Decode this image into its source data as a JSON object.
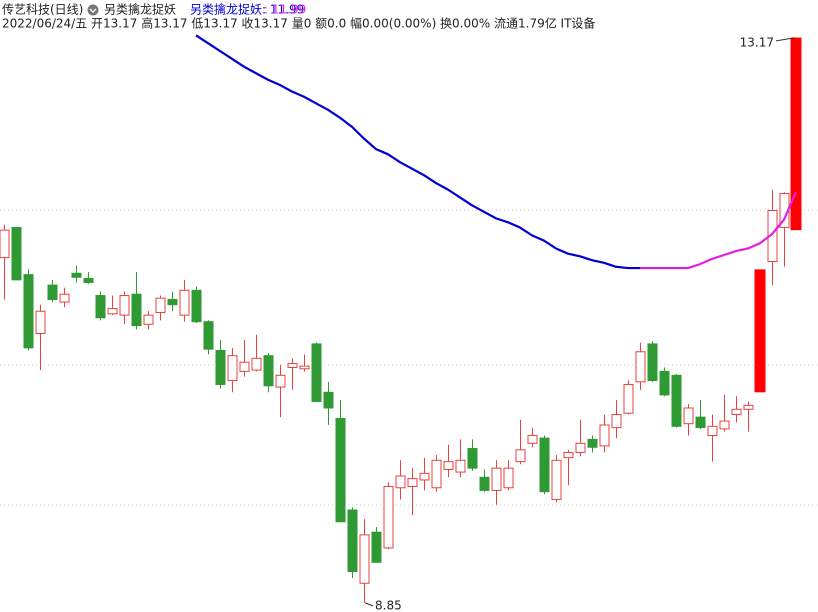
{
  "header": {
    "title": "传艺科技(日线)",
    "indicator": "另类擒龙捉妖",
    "indicator_value": "另类擒龙捉妖: 11.99",
    "indicator_value2": ": 11.99",
    "quote": "2022/06/24/五 开13.17 高13.17 低13.17 收13.17 量0 额0.0 幅0.00(0.00%) 换0.00% 流通1.79亿 IT设备"
  },
  "chart_data": {
    "type": "candlestick",
    "up_color": "#e8403e",
    "down_color": "#2f9a33",
    "ylim": [
      8.78,
      13.46
    ],
    "open": [
      11.49,
      11.72,
      11.36,
      10.91,
      11.28,
      11.15,
      11.37,
      11.33,
      11.2,
      11.06,
      11.05,
      11.21,
      10.98,
      11.07,
      11.17,
      11.05,
      11.24,
      11.0,
      10.78,
      10.55,
      10.62,
      10.63,
      10.74,
      10.5,
      10.65,
      10.64,
      10.83,
      10.46,
      10.26,
      9.56,
      9.0,
      9.39,
      9.27,
      9.73,
      9.74,
      9.79,
      9.73,
      9.87,
      9.85,
      10.03,
      9.81,
      9.71,
      9.73,
      9.93,
      10.07,
      10.11,
      9.64,
      9.96,
      10.0,
      10.1,
      10.05,
      10.19,
      10.3,
      10.54,
      10.83,
      10.62,
      10.59,
      10.22,
      10.27,
      10.13,
      10.18,
      10.29,
      10.33,
      10.5,
      11.46,
      11.72,
      13.17
    ],
    "high": [
      11.74,
      11.72,
      11.4,
      11.13,
      11.32,
      11.26,
      11.43,
      11.38,
      11.23,
      11.2,
      11.23,
      11.38,
      11.08,
      11.2,
      11.23,
      11.32,
      11.27,
      11.01,
      10.86,
      10.8,
      10.86,
      10.9,
      10.76,
      10.67,
      10.72,
      10.75,
      10.84,
      10.54,
      10.4,
      9.58,
      9.49,
      9.43,
      9.77,
      9.94,
      9.88,
      9.96,
      9.98,
      10.06,
      10.1,
      10.1,
      9.87,
      9.94,
      9.94,
      10.25,
      10.19,
      10.13,
      9.98,
      10.02,
      10.25,
      10.13,
      10.29,
      10.4,
      10.55,
      10.84,
      10.85,
      10.65,
      10.6,
      10.37,
      10.4,
      10.29,
      10.44,
      10.43,
      10.39,
      11.4,
      12.01,
      11.99,
      13.17
    ],
    "low": [
      11.17,
      11.32,
      10.78,
      10.63,
      11.15,
      11.11,
      11.3,
      11.29,
      11.01,
      11.05,
      10.98,
      10.94,
      10.94,
      11.01,
      11.08,
      11.0,
      10.99,
      10.75,
      10.49,
      10.46,
      10.58,
      10.62,
      10.46,
      10.27,
      10.48,
      10.62,
      10.39,
      10.21,
      9.47,
      9.04,
      8.85,
      9.16,
      9.26,
      9.64,
      9.52,
      9.71,
      9.7,
      9.81,
      9.81,
      9.86,
      9.7,
      9.6,
      9.71,
      9.91,
      10.04,
      9.68,
      9.62,
      9.75,
      9.97,
      10.0,
      10.0,
      10.11,
      10.29,
      10.48,
      10.54,
      10.43,
      10.19,
      10.13,
      10.18,
      9.93,
      10.16,
      10.23,
      10.16,
      10.46,
      11.28,
      11.42,
      13.17
    ],
    "close": [
      11.7,
      11.32,
      10.8,
      11.08,
      11.17,
      11.21,
      11.34,
      11.3,
      11.03,
      11.1,
      11.2,
      10.97,
      11.05,
      11.18,
      11.13,
      11.24,
      11.0,
      10.79,
      10.52,
      10.74,
      10.69,
      10.72,
      10.51,
      10.59,
      10.68,
      10.66,
      10.39,
      10.34,
      9.47,
      9.09,
      9.37,
      9.16,
      9.74,
      9.82,
      9.8,
      9.84,
      9.94,
      9.93,
      9.94,
      9.88,
      9.71,
      9.88,
      9.88,
      10.02,
      10.13,
      9.7,
      9.94,
      10.0,
      10.07,
      10.04,
      10.21,
      10.29,
      10.52,
      10.77,
      10.55,
      10.44,
      10.2,
      10.34,
      10.19,
      10.2,
      10.24,
      10.33,
      10.36,
      10.9,
      11.85,
      11.98,
      13.17
    ],
    "series": [
      {
        "color": "#0000d0",
        "values": [
          null,
          null,
          null,
          null,
          null,
          null,
          null,
          null,
          null,
          null,
          null,
          null,
          null,
          null,
          null,
          null,
          13.19,
          13.13,
          13.07,
          13.01,
          12.95,
          12.9,
          12.85,
          12.81,
          12.76,
          12.72,
          12.67,
          12.62,
          12.56,
          12.49,
          12.4,
          12.32,
          12.28,
          12.22,
          12.17,
          12.12,
          12.06,
          12.01,
          11.95,
          11.89,
          11.84,
          11.79,
          11.76,
          11.72,
          11.66,
          11.62,
          11.56,
          11.52,
          11.5,
          11.47,
          11.45,
          11.42,
          11.41,
          11.41,
          null,
          null,
          null,
          null,
          null,
          null,
          null,
          null,
          null,
          null,
          null,
          null,
          null
        ]
      },
      {
        "color": "#e020e0",
        "values": [
          null,
          null,
          null,
          null,
          null,
          null,
          null,
          null,
          null,
          null,
          null,
          null,
          null,
          null,
          null,
          null,
          null,
          null,
          null,
          null,
          null,
          null,
          null,
          null,
          null,
          null,
          null,
          null,
          null,
          null,
          null,
          null,
          null,
          null,
          null,
          null,
          null,
          null,
          null,
          null,
          null,
          null,
          null,
          null,
          null,
          null,
          null,
          null,
          null,
          null,
          null,
          null,
          null,
          11.41,
          11.41,
          11.41,
          11.41,
          11.41,
          11.44,
          11.48,
          11.51,
          11.54,
          11.56,
          11.6,
          11.67,
          11.78,
          11.99
        ]
      }
    ],
    "signal": {
      "color": "#ff0000",
      "high": [
        null,
        null,
        null,
        null,
        null,
        null,
        null,
        null,
        null,
        null,
        null,
        null,
        null,
        null,
        null,
        null,
        null,
        null,
        null,
        null,
        null,
        null,
        null,
        null,
        null,
        null,
        null,
        null,
        null,
        null,
        null,
        null,
        null,
        null,
        null,
        null,
        null,
        null,
        null,
        null,
        null,
        null,
        null,
        null,
        null,
        null,
        null,
        null,
        null,
        null,
        null,
        null,
        null,
        null,
        null,
        null,
        null,
        null,
        null,
        null,
        null,
        null,
        null,
        11.4,
        null,
        null,
        13.17
      ],
      "low": [
        null,
        null,
        null,
        null,
        null,
        null,
        null,
        null,
        null,
        null,
        null,
        null,
        null,
        null,
        null,
        null,
        null,
        null,
        null,
        null,
        null,
        null,
        null,
        null,
        null,
        null,
        null,
        null,
        null,
        null,
        null,
        null,
        null,
        null,
        null,
        null,
        null,
        null,
        null,
        null,
        null,
        null,
        null,
        null,
        null,
        null,
        null,
        null,
        null,
        null,
        null,
        null,
        null,
        null,
        null,
        null,
        null,
        null,
        null,
        null,
        null,
        null,
        null,
        10.46,
        null,
        null,
        11.7
      ]
    }
  }
}
